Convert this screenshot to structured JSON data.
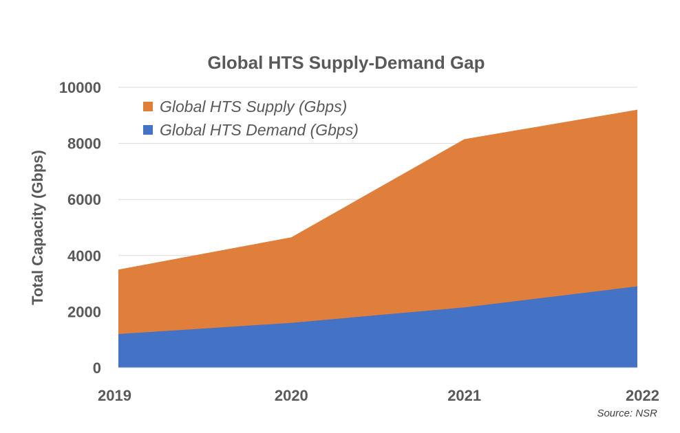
{
  "chart_data": {
    "type": "area",
    "title": "Global HTS Supply-Demand Gap",
    "xlabel": "",
    "ylabel": "Total Capacity (Gbps)",
    "categories": [
      "2019",
      "2020",
      "2021",
      "2022"
    ],
    "ylim": [
      0,
      10000
    ],
    "yticks": [
      0,
      2000,
      4000,
      6000,
      8000,
      10000
    ],
    "grid": true,
    "legend_position": "top-left",
    "series": [
      {
        "name": "Global HTS Supply (Gbps)",
        "values": [
          3500,
          4650,
          8150,
          9200
        ],
        "color": "#E07E3C"
      },
      {
        "name": "Global HTS Demand (Gbps)",
        "values": [
          1200,
          1600,
          2150,
          2900
        ],
        "color": "#4472C4"
      }
    ],
    "annotations": [
      "Source: NSR"
    ]
  }
}
